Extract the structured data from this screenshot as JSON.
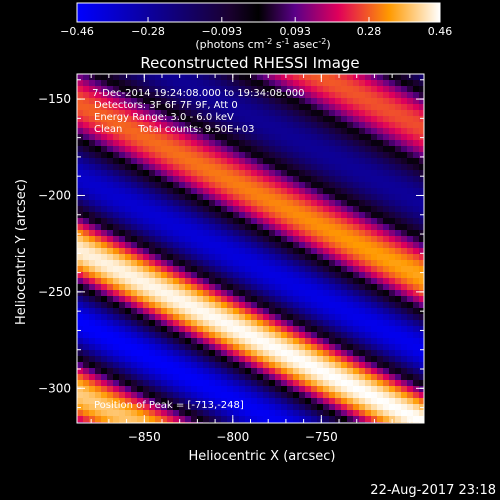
{
  "chart_data": {
    "type": "heatmap",
    "title": "Reconstructed RHESSI Image",
    "xlabel": "Heliocentric X (arcsec)",
    "ylabel": "Heliocentric Y (arcsec)",
    "xlim": [
      -888,
      -692
    ],
    "ylim": [
      -318,
      -137
    ],
    "x_ticks": [
      -850,
      -800,
      -750
    ],
    "y_ticks": [
      -150,
      -200,
      -250,
      -300
    ],
    "colorbar": {
      "min": -0.46,
      "max": 0.46,
      "tick_values": [
        -0.46,
        -0.28,
        -0.093,
        0.093,
        0.28,
        0.46
      ],
      "tick_labels": [
        "-0.46",
        "-0.28",
        "-0.093",
        "0.093",
        "0.28",
        "0.46"
      ],
      "unit_label": "(photons cm",
      "unit_exp1": "-2",
      "unit_mid": " s",
      "unit_exp2": "-1",
      "unit_mid2": " asec",
      "unit_exp3": "-2",
      "unit_close": ")"
    },
    "fringe_pattern": {
      "slope_dy_dx": 0.46,
      "period_y_arcsec": 76,
      "peak_ridge_offset_y": -232
    },
    "annotations": [
      " 7-Dec-2014 19:24:08.000 to 19:34:08.000",
      "Detectors: 3F 6F 7F 9F, Att 0",
      "Energy Range: 3.0 - 6.0 keV",
      "Clean     Total counts: 9.50E+03"
    ],
    "peak_label": "Position of Peak = [-713,-248]",
    "peak": [
      -713,
      -248
    ]
  },
  "timestamp": "22-Aug-2017 23:18"
}
